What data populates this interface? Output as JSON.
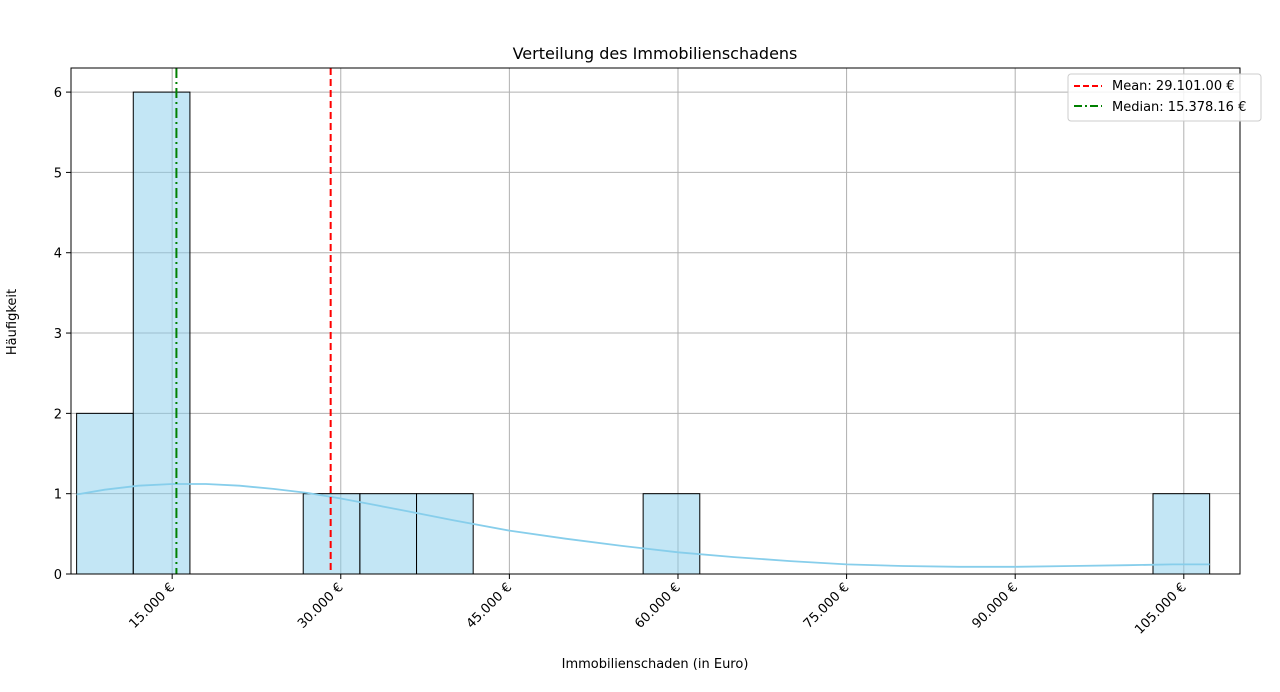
{
  "chart_data": {
    "type": "bar",
    "title": "Verteilung des Immobilienschadens",
    "xlabel": "Immobilienschaden (in Euro)",
    "ylabel": "Häufigkeit",
    "xlim": [
      6000,
      110000
    ],
    "ylim": [
      0,
      6.3
    ],
    "x_ticks": [
      15000,
      30000,
      45000,
      60000,
      75000,
      90000,
      105000
    ],
    "x_tick_labels": [
      "15.000 €",
      "30.000 €",
      "45.000 €",
      "60.000 €",
      "75.000 €",
      "90.000 €",
      "105.000 €"
    ],
    "y_ticks": [
      0,
      1,
      2,
      3,
      4,
      5,
      6
    ],
    "y_tick_labels": [
      "0",
      "1",
      "2",
      "3",
      "4",
      "5",
      "6"
    ],
    "grid": true,
    "bins": [
      {
        "start": 6500,
        "end": 11540,
        "count": 2
      },
      {
        "start": 11540,
        "end": 16580,
        "count": 6
      },
      {
        "start": 16580,
        "end": 21620,
        "count": 0
      },
      {
        "start": 21620,
        "end": 26660,
        "count": 0
      },
      {
        "start": 26660,
        "end": 31700,
        "count": 1
      },
      {
        "start": 31700,
        "end": 36740,
        "count": 1
      },
      {
        "start": 36740,
        "end": 41780,
        "count": 1
      },
      {
        "start": 41780,
        "end": 46820,
        "count": 0
      },
      {
        "start": 46820,
        "end": 51860,
        "count": 0
      },
      {
        "start": 51860,
        "end": 56900,
        "count": 0
      },
      {
        "start": 56900,
        "end": 61940,
        "count": 1
      },
      {
        "start": 61940,
        "end": 66980,
        "count": 0
      },
      {
        "start": 66980,
        "end": 72020,
        "count": 0
      },
      {
        "start": 72020,
        "end": 77060,
        "count": 0
      },
      {
        "start": 77060,
        "end": 82100,
        "count": 0
      },
      {
        "start": 82100,
        "end": 87140,
        "count": 0
      },
      {
        "start": 87140,
        "end": 92180,
        "count": 0
      },
      {
        "start": 92180,
        "end": 97220,
        "count": 0
      },
      {
        "start": 97220,
        "end": 102260,
        "count": 0
      },
      {
        "start": 102260,
        "end": 107300,
        "count": 1
      }
    ],
    "kde": {
      "x": [
        6500,
        9000,
        12000,
        15000,
        18000,
        21000,
        24000,
        27000,
        30000,
        33000,
        36000,
        40000,
        45000,
        50000,
        55000,
        60000,
        65000,
        70000,
        75000,
        80000,
        85000,
        90000,
        95000,
        100000,
        104000,
        107300
      ],
      "y": [
        0.99,
        1.05,
        1.1,
        1.12,
        1.12,
        1.1,
        1.06,
        1.01,
        0.94,
        0.86,
        0.78,
        0.67,
        0.54,
        0.44,
        0.35,
        0.27,
        0.21,
        0.16,
        0.12,
        0.1,
        0.09,
        0.09,
        0.1,
        0.11,
        0.12,
        0.12
      ]
    },
    "mean": {
      "value": 29101.0,
      "label": "Mean: 29.101.00 €",
      "color": "#ff0000"
    },
    "median": {
      "value": 15378.16,
      "label": "Median: 15.378.16 €",
      "color": "#008000"
    },
    "bar_color": "#87ceeb",
    "kde_color": "#87ceeb",
    "legend_position": "top-right"
  }
}
